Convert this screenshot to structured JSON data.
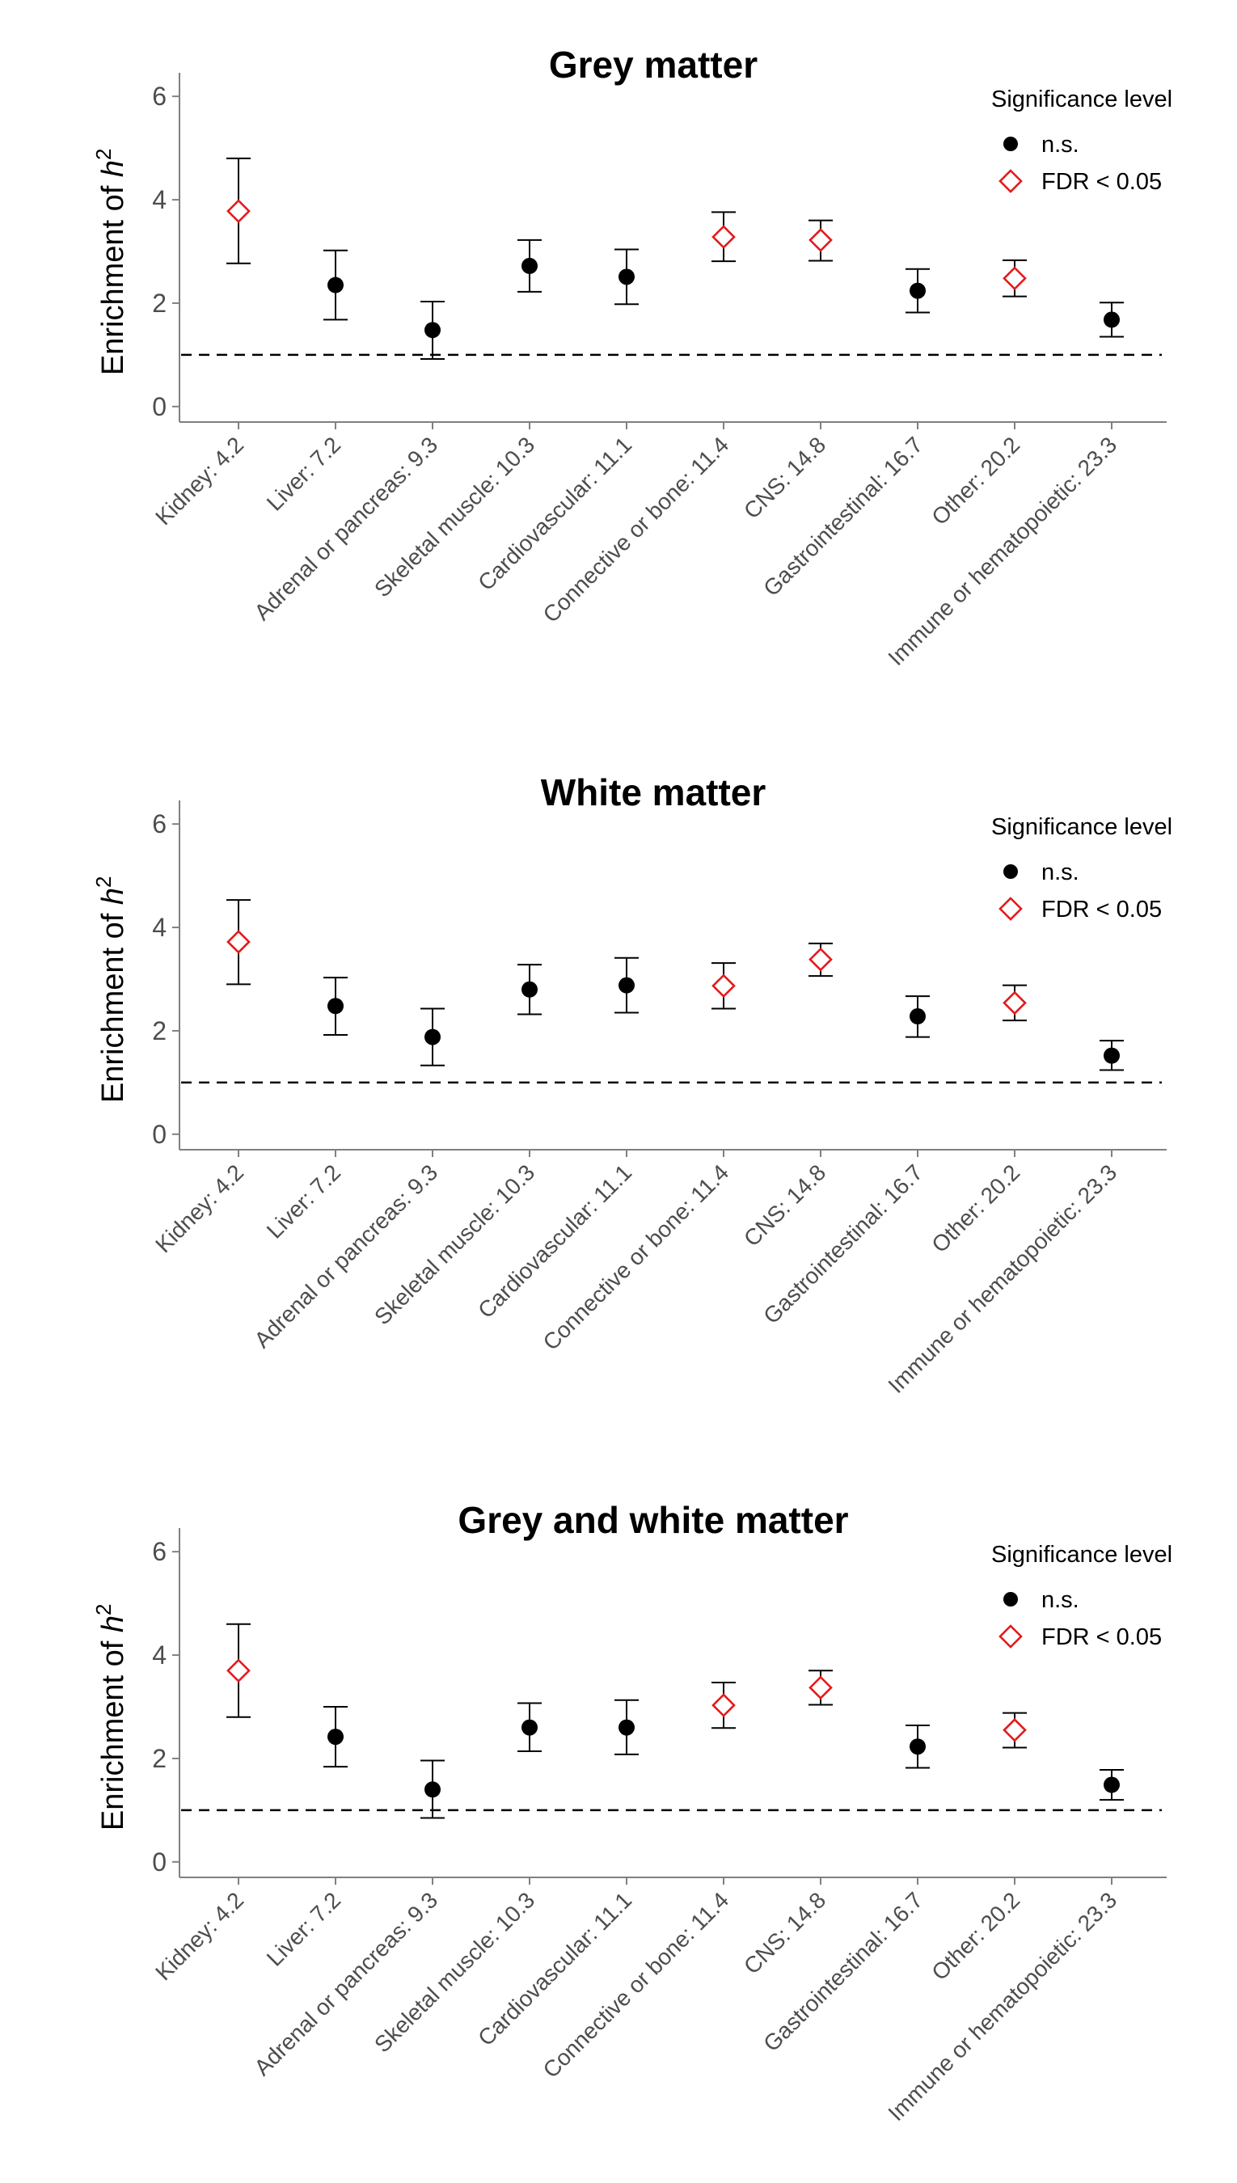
{
  "colors": {
    "ns": "#000000",
    "fdr": "#e41a1c",
    "axis": "#808080",
    "tick_text": "#4d4d4d"
  },
  "legend": {
    "title": "Significance level",
    "items": [
      {
        "key": "ns",
        "label": "n.s.",
        "shape": "filled-circle"
      },
      {
        "key": "fdr",
        "label": "FDR < 0.05",
        "shape": "open-diamond"
      }
    ],
    "placement": "top-right"
  },
  "chart_data": [
    {
      "type": "scatter",
      "title": "Grey matter",
      "ylabel": "Enrichment of h2",
      "ylim": [
        -0.3,
        6.3
      ],
      "yticks": [
        0,
        2,
        4,
        6
      ],
      "reference_line": 1,
      "categories": [
        "Kidney: 4.2",
        "Liver: 7.2",
        "Adrenal or pancreas: 9.3",
        "Skeletal muscle: 10.3",
        "Cardiovascular: 11.1",
        "Connective or bone: 11.4",
        "CNS: 14.8",
        "Gastrointestinal: 16.7",
        "Other: 20.2",
        "Immune or hematopoietic: 23.3"
      ],
      "values": [
        3.78,
        2.35,
        1.48,
        2.72,
        2.51,
        3.28,
        3.22,
        2.24,
        2.48,
        1.68
      ],
      "lower": [
        2.77,
        1.68,
        0.92,
        2.22,
        1.98,
        2.81,
        2.82,
        1.82,
        2.13,
        1.35
      ],
      "upper": [
        4.8,
        3.02,
        2.03,
        3.22,
        3.04,
        3.76,
        3.6,
        2.66,
        2.83,
        2.01
      ],
      "significance": [
        "fdr",
        "ns",
        "ns",
        "ns",
        "ns",
        "fdr",
        "fdr",
        "ns",
        "fdr",
        "ns"
      ]
    },
    {
      "type": "scatter",
      "title": "White matter",
      "ylabel": "Enrichment of h2",
      "ylim": [
        -0.3,
        6.3
      ],
      "yticks": [
        0,
        2,
        4,
        6
      ],
      "reference_line": 1,
      "categories": [
        "Kidney: 4.2",
        "Liver: 7.2",
        "Adrenal or pancreas: 9.3",
        "Skeletal muscle: 10.3",
        "Cardiovascular: 11.1",
        "Connective or bone: 11.4",
        "CNS: 14.8",
        "Gastrointestinal: 16.7",
        "Other: 20.2",
        "Immune or hematopoietic: 23.3"
      ],
      "values": [
        3.72,
        2.48,
        1.88,
        2.8,
        2.88,
        2.87,
        3.38,
        2.28,
        2.54,
        1.52
      ],
      "lower": [
        2.9,
        1.92,
        1.33,
        2.32,
        2.35,
        2.43,
        3.06,
        1.88,
        2.2,
        1.24
      ],
      "upper": [
        4.53,
        3.03,
        2.43,
        3.28,
        3.41,
        3.31,
        3.69,
        2.67,
        2.88,
        1.81
      ],
      "significance": [
        "fdr",
        "ns",
        "ns",
        "ns",
        "ns",
        "fdr",
        "fdr",
        "ns",
        "fdr",
        "ns"
      ]
    },
    {
      "type": "scatter",
      "title": "Grey and white matter",
      "ylabel": "Enrichment of h2",
      "ylim": [
        -0.3,
        6.3
      ],
      "yticks": [
        0,
        2,
        4,
        6
      ],
      "reference_line": 1,
      "categories": [
        "Kidney: 4.2",
        "Liver: 7.2",
        "Adrenal or pancreas: 9.3",
        "Skeletal muscle: 10.3",
        "Cardiovascular: 11.1",
        "Connective or bone: 11.4",
        "CNS: 14.8",
        "Gastrointestinal: 16.7",
        "Other: 20.2",
        "Immune or hematopoietic: 23.3"
      ],
      "values": [
        3.7,
        2.42,
        1.4,
        2.6,
        2.6,
        3.03,
        3.37,
        2.23,
        2.55,
        1.49
      ],
      "lower": [
        2.8,
        1.84,
        0.85,
        2.14,
        2.08,
        2.59,
        3.04,
        1.82,
        2.21,
        1.2
      ],
      "upper": [
        4.6,
        3.0,
        1.96,
        3.07,
        3.13,
        3.47,
        3.7,
        2.64,
        2.88,
        1.78
      ],
      "significance": [
        "fdr",
        "ns",
        "ns",
        "ns",
        "ns",
        "fdr",
        "fdr",
        "ns",
        "fdr",
        "ns"
      ]
    }
  ]
}
